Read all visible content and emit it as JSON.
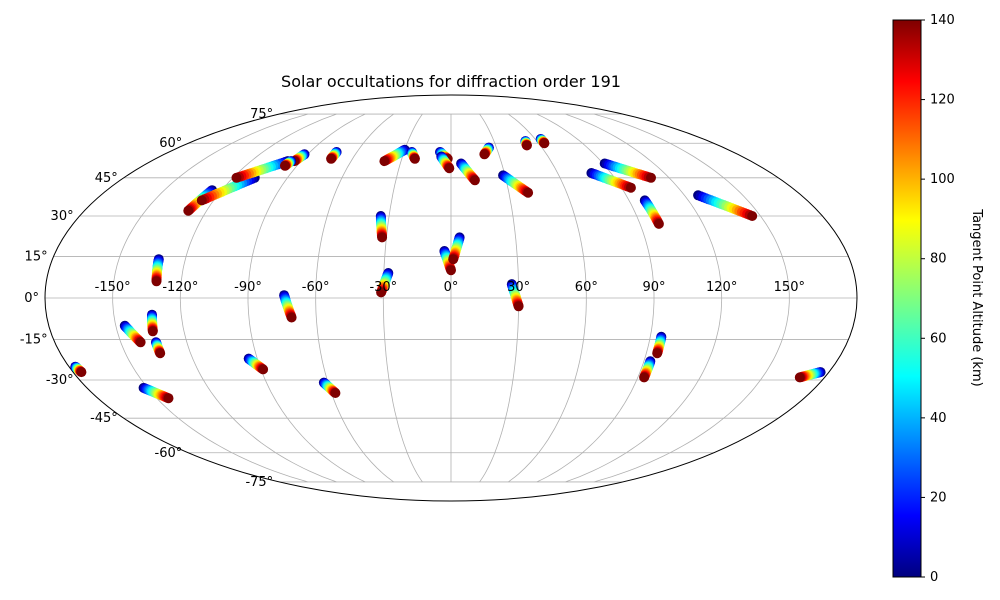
{
  "chart_data": {
    "type": "scatter",
    "projection": "mollweide",
    "title": "Solar occultations for diffraction order 191",
    "grid": true,
    "lon_ticks": [
      "-150°",
      "-120°",
      "-90°",
      "-60°",
      "-30°",
      "0°",
      "30°",
      "60°",
      "90°",
      "120°",
      "150°"
    ],
    "lon_tick_values": [
      -150,
      -120,
      -90,
      -60,
      -30,
      0,
      30,
      60,
      90,
      120,
      150
    ],
    "lat_ticks": [
      "75°",
      "60°",
      "45°",
      "30°",
      "15°",
      "0°",
      "-15°",
      "-30°",
      "-45°",
      "-60°",
      "-75°"
    ],
    "lat_tick_values": [
      75,
      60,
      45,
      30,
      15,
      0,
      -15,
      -30,
      -45,
      -60,
      -75
    ],
    "colorbar": {
      "label": "Tangent Point Altitude (km)",
      "range": [
        0,
        140
      ],
      "ticks": [
        "0",
        "20",
        "40",
        "60",
        "80",
        "100",
        "120",
        "140"
      ],
      "tick_values": [
        0,
        20,
        40,
        60,
        80,
        100,
        120,
        140
      ],
      "colormap": "jet"
    },
    "tracks": [
      {
        "lon0": -125,
        "lat0": 40,
        "lon1": -129,
        "lat1": 32
      },
      {
        "lon0": -108,
        "lat0": 45,
        "lon1": -126,
        "lat1": 36
      },
      {
        "lon0": -98,
        "lat0": 52,
        "lon1": -118,
        "lat1": 45
      },
      {
        "lon0": -92,
        "lat0": 55,
        "lon1": -94,
        "lat1": 52
      },
      {
        "lon0": -96,
        "lat0": 52,
        "lon1": -97,
        "lat1": 50
      },
      {
        "lon0": -73,
        "lat0": 56,
        "lon1": -73,
        "lat1": 53
      },
      {
        "lon0": -30,
        "lat0": 57,
        "lon1": -40,
        "lat1": 52
      },
      {
        "lon0": -25,
        "lat0": 56,
        "lon1": -22,
        "lat1": 53
      },
      {
        "lon0": -7,
        "lat0": 56,
        "lon1": -2,
        "lat1": 53
      },
      {
        "lon0": -6,
        "lat0": 54,
        "lon1": -1,
        "lat1": 49
      },
      {
        "lon0": 6,
        "lat0": 51,
        "lon1": 13,
        "lat1": 44
      },
      {
        "lon0": 25,
        "lat0": 58,
        "lon1": 21,
        "lat1": 55
      },
      {
        "lon0": 29,
        "lat0": 46,
        "lon1": 40,
        "lat1": 39
      },
      {
        "lon0": 52,
        "lat0": 61,
        "lon1": 51,
        "lat1": 59
      },
      {
        "lon0": 64,
        "lat0": 62,
        "lon1": 64,
        "lat1": 60
      },
      {
        "lon0": 79,
        "lat0": 47,
        "lon1": 95,
        "lat1": 41
      },
      {
        "lon0": 91,
        "lat0": 51,
        "lon1": 110,
        "lat1": 45
      },
      {
        "lon0": 98,
        "lat0": 36,
        "lon1": 99,
        "lat1": 27
      },
      {
        "lon0": 127,
        "lat0": 38,
        "lon1": 146,
        "lat1": 30
      },
      {
        "lon0": -34,
        "lat0": 30,
        "lon1": -32,
        "lat1": 22
      },
      {
        "lon0": -132,
        "lat0": 14,
        "lon1": -131,
        "lat1": 6
      },
      {
        "lon0": -3,
        "lat0": 17,
        "lon1": 0,
        "lat1": 10
      },
      {
        "lon0": 4,
        "lat0": 22,
        "lon1": 1,
        "lat1": 14
      },
      {
        "lon0": -28,
        "lat0": 9,
        "lon1": -31,
        "lat1": 2
      },
      {
        "lon0": 27,
        "lat0": 5,
        "lon1": 30,
        "lat1": -3
      },
      {
        "lon0": -74,
        "lat0": 1,
        "lon1": -71,
        "lat1": -7
      },
      {
        "lon0": -146,
        "lat0": -10,
        "lon1": -141,
        "lat1": -16
      },
      {
        "lon0": -133,
        "lat0": -6,
        "lon1": -134,
        "lat1": -12
      },
      {
        "lon0": -134,
        "lat0": -16,
        "lon1": -134,
        "lat1": -20
      },
      {
        "lon0": -94,
        "lat0": -22,
        "lon1": -89,
        "lat1": -26
      },
      {
        "lon0": -62,
        "lat0": -31,
        "lon1": -58,
        "lat1": -35
      },
      {
        "lon0": -152,
        "lat0": -33,
        "lon1": -144,
        "lat1": -37
      },
      {
        "lon0": -177,
        "lat0": -25,
        "lon1": -176,
        "lat1": -27
      },
      {
        "lon0": 95,
        "lat0": -14,
        "lon1": 95,
        "lat1": -20
      },
      {
        "lon0": 93,
        "lat0": -23,
        "lon1": 93,
        "lat1": -29
      },
      {
        "lon0": 176,
        "lat0": -27,
        "lon1": 168,
        "lat1": -29
      }
    ]
  }
}
